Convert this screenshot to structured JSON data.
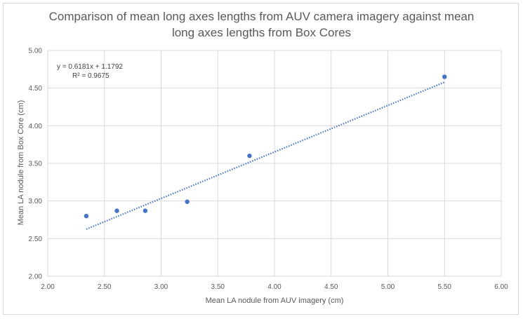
{
  "chart_data": {
    "type": "scatter",
    "title_line1": "Comparison of mean long axes lengths from AUV camera imagery against mean",
    "title_line2": "long axes lengths from Box Cores",
    "xlabel": "Mean LA nodule from AUV imagery (cm)",
    "ylabel": "Mean LA nodule from Box Core (cm)",
    "xlim": [
      2.0,
      6.0
    ],
    "ylim": [
      2.0,
      5.0
    ],
    "x_ticks": [
      "2.00",
      "2.50",
      "3.00",
      "3.50",
      "4.00",
      "4.50",
      "5.00",
      "5.50",
      "6.00"
    ],
    "y_ticks": [
      "2.00",
      "2.50",
      "3.00",
      "3.50",
      "4.00",
      "4.50",
      "5.00"
    ],
    "grid": true,
    "marker_color": "#4472c4",
    "trendline_color": "#4472c4",
    "points": [
      {
        "x": 2.34,
        "y": 2.8
      },
      {
        "x": 2.61,
        "y": 2.87
      },
      {
        "x": 2.86,
        "y": 2.87
      },
      {
        "x": 3.23,
        "y": 2.99
      },
      {
        "x": 3.78,
        "y": 3.6
      },
      {
        "x": 5.5,
        "y": 4.65
      }
    ],
    "trendline": {
      "slope": 0.6181,
      "intercept": 1.1792,
      "x_start": 2.34,
      "x_end": 5.5
    },
    "equation_label": "y = 0.6181x + 1.1792",
    "r2_label": "R² = 0.9675"
  }
}
